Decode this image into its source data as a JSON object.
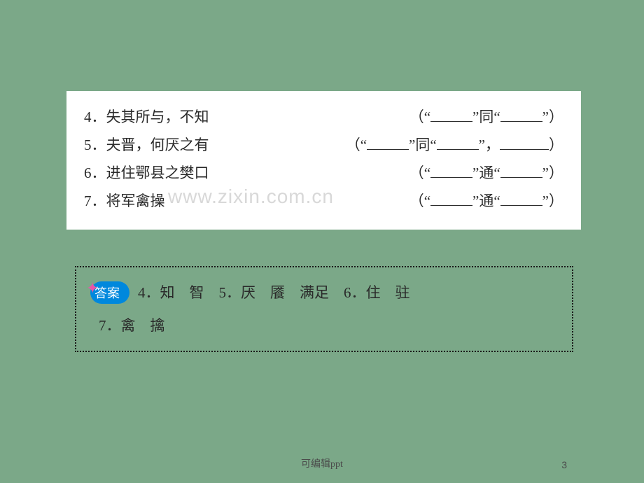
{
  "questions": [
    {
      "num": "4",
      "text": "失其所与，不知",
      "pattern_type": "same",
      "blanks": 2
    },
    {
      "num": "5",
      "text": "夫晋，何厌之有",
      "pattern_type": "same_extra",
      "blanks": 3
    },
    {
      "num": "6",
      "text": "进住鄂县之樊口",
      "pattern_type": "tong",
      "blanks": 2
    },
    {
      "num": "7",
      "text": "将军禽操",
      "pattern_type": "tong",
      "blanks": 2
    }
  ],
  "labels": {
    "same": "同",
    "tong": "通",
    "quote_open": "“",
    "quote_close": "”",
    "paren_open": "（",
    "paren_close": "）",
    "comma": "，",
    "period": "．"
  },
  "watermark": "www.zixin.com.cn",
  "answer": {
    "label": "答案",
    "line1": "4．知　智　5．厌　餍　满足　6．住　驻",
    "line2": "7．禽　擒"
  },
  "footer": {
    "text": "可编辑ppt",
    "page": "3"
  },
  "colors": {
    "background": "#7ba888",
    "box_bg": "#ffffff",
    "text": "#2a2a2a",
    "watermark": "#d8d8d8",
    "answer_border": "#1a1a1a",
    "answer_label_bg": "#0088dd",
    "answer_label_text": "#ffffff",
    "star": "#e855a8"
  }
}
